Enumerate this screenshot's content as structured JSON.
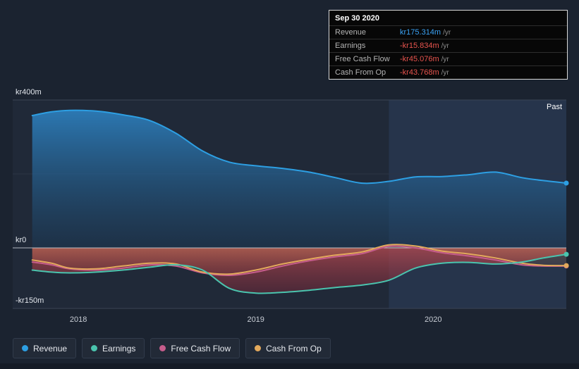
{
  "tooltip": {
    "date": "Sep 30 2020",
    "rows": [
      {
        "label": "Revenue",
        "value": "kr175.314m",
        "unit": "/yr",
        "color": "#3aa2f4"
      },
      {
        "label": "Earnings",
        "value": "-kr15.834m",
        "unit": "/yr",
        "color": "#e8544e"
      },
      {
        "label": "Free Cash Flow",
        "value": "-kr45.076m",
        "unit": "/yr",
        "color": "#e8544e"
      },
      {
        "label": "Cash From Op",
        "value": "-kr43.768m",
        "unit": "/yr",
        "color": "#e8544e"
      }
    ]
  },
  "legend": {
    "items": [
      {
        "label": "Revenue",
        "color": "#2d9fe3"
      },
      {
        "label": "Earnings",
        "color": "#4ac4ae"
      },
      {
        "label": "Free Cash Flow",
        "color": "#c65d8c"
      },
      {
        "label": "Cash From Op",
        "color": "#e3a95c"
      }
    ]
  },
  "chart_data": {
    "type": "area",
    "title": "",
    "past_label": "Past",
    "past_region_start": 2019.75,
    "xlim": [
      2017.63,
      2020.75
    ],
    "ylim": [
      -150,
      400
    ],
    "grid": "minimal",
    "legend_position": "bottom",
    "x_ticks": [
      {
        "label": "2018",
        "year": 2018
      },
      {
        "label": "2019",
        "year": 2019
      },
      {
        "label": "2020",
        "year": 2020
      }
    ],
    "y_ticks": [
      {
        "label": "kr400m",
        "value": 400
      },
      {
        "label": "kr0",
        "value": 0
      },
      {
        "label": "-kr150m",
        "value": -150
      }
    ],
    "x": [
      2017.74,
      2017.85,
      2017.95,
      2018.1,
      2018.25,
      2018.4,
      2018.55,
      2018.7,
      2018.85,
      2019.0,
      2019.15,
      2019.3,
      2019.45,
      2019.6,
      2019.75,
      2019.9,
      2020.05,
      2020.2,
      2020.35,
      2020.5,
      2020.62,
      2020.75
    ],
    "series": [
      {
        "name": "Revenue",
        "unit": "kr millions",
        "color": "#2d9fe3",
        "values": [
          358,
          368,
          372,
          370,
          360,
          345,
          310,
          262,
          232,
          222,
          215,
          205,
          190,
          175,
          180,
          192,
          193,
          198,
          205,
          190,
          182,
          175.314
        ]
      },
      {
        "name": "Earnings",
        "unit": "kr millions",
        "color": "#4ac4ae",
        "values": [
          -55,
          -60,
          -62,
          -60,
          -55,
          -48,
          -42,
          -55,
          -100,
          -112,
          -110,
          -105,
          -98,
          -92,
          -80,
          -50,
          -38,
          -36,
          -40,
          -35,
          -25,
          -15.834
        ]
      },
      {
        "name": "Free Cash Flow",
        "unit": "kr millions",
        "color": "#c65d8c",
        "values": [
          -35,
          -42,
          -52,
          -55,
          -50,
          -42,
          -45,
          -62,
          -68,
          -60,
          -45,
          -32,
          -22,
          -14,
          4,
          0,
          -12,
          -20,
          -30,
          -42,
          -45,
          -45.076
        ]
      },
      {
        "name": "Cash From Op",
        "unit": "kr millions",
        "color": "#e3a95c",
        "values": [
          -30,
          -38,
          -50,
          -52,
          -45,
          -38,
          -40,
          -60,
          -65,
          -55,
          -40,
          -28,
          -18,
          -10,
          8,
          5,
          -8,
          -15,
          -25,
          -38,
          -43,
          -43.768
        ]
      }
    ]
  }
}
